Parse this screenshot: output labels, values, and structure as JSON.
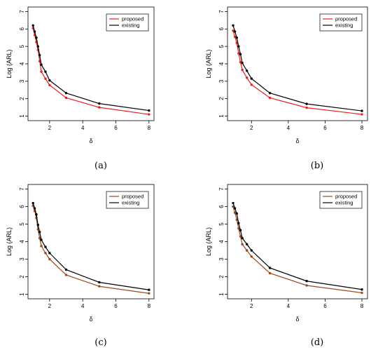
{
  "chart_data": [
    {
      "type": "line",
      "panel_label": "(a)",
      "xlabel": "δ",
      "ylabel": "Log (ARL)",
      "xlim": [
        1,
        8
      ],
      "ylim": [
        1,
        7
      ],
      "x_ticks": [
        2,
        4,
        6,
        8
      ],
      "y_ticks": [
        1,
        2,
        3,
        4,
        5,
        6,
        7
      ],
      "legend_position": "top-right",
      "x": [
        1.0,
        1.1,
        1.2,
        1.3,
        1.4,
        1.5,
        1.75,
        2.0,
        3.0,
        5.0,
        8.0
      ],
      "series": [
        {
          "name": "proposed",
          "color": "#e8201d",
          "values": [
            6.05,
            5.65,
            5.25,
            4.8,
            4.15,
            3.55,
            3.15,
            2.78,
            2.05,
            1.5,
            1.1
          ]
        },
        {
          "name": "existing",
          "color": "#000000",
          "values": [
            6.2,
            5.85,
            5.5,
            5.0,
            4.5,
            3.95,
            3.55,
            3.05,
            2.32,
            1.72,
            1.32
          ]
        }
      ]
    },
    {
      "type": "line",
      "panel_label": "(b)",
      "xlabel": "δ",
      "ylabel": "Log (ARL)",
      "xlim": [
        1,
        8
      ],
      "ylim": [
        1,
        7
      ],
      "x_ticks": [
        2,
        4,
        6,
        8
      ],
      "y_ticks": [
        1,
        2,
        3,
        4,
        5,
        6,
        7
      ],
      "legend_position": "top-right",
      "x": [
        1.0,
        1.1,
        1.2,
        1.3,
        1.4,
        1.5,
        1.75,
        2.0,
        3.0,
        5.0,
        8.0
      ],
      "series": [
        {
          "name": "proposed",
          "color": "#e8201d",
          "values": [
            5.9,
            5.55,
            5.2,
            4.6,
            4.1,
            3.65,
            3.2,
            2.8,
            2.05,
            1.48,
            1.1
          ]
        },
        {
          "name": "existing",
          "color": "#000000",
          "values": [
            6.2,
            5.85,
            5.5,
            5.0,
            4.55,
            4.05,
            3.6,
            3.15,
            2.32,
            1.7,
            1.3
          ]
        }
      ]
    },
    {
      "type": "line",
      "panel_label": "(c)",
      "xlabel": "δ",
      "ylabel": "Log (ARL)",
      "xlim": [
        1,
        8
      ],
      "ylim": [
        1,
        7
      ],
      "x_ticks": [
        2,
        4,
        6,
        8
      ],
      "y_ticks": [
        1,
        2,
        3,
        4,
        5,
        6,
        7
      ],
      "legend_position": "top-right",
      "x": [
        1.0,
        1.1,
        1.2,
        1.3,
        1.4,
        1.5,
        1.75,
        2.0,
        3.0,
        5.0,
        8.0
      ],
      "series": [
        {
          "name": "proposed",
          "color": "#9a4a1c",
          "values": [
            6.05,
            5.75,
            5.35,
            4.7,
            4.2,
            3.75,
            3.35,
            3.0,
            2.1,
            1.45,
            1.05
          ]
        },
        {
          "name": "existing",
          "color": "#000000",
          "values": [
            6.2,
            5.9,
            5.55,
            4.95,
            4.55,
            4.1,
            3.7,
            3.35,
            2.4,
            1.68,
            1.25
          ]
        }
      ]
    },
    {
      "type": "line",
      "panel_label": "(d)",
      "xlabel": "δ",
      "ylabel": "Log (ARL)",
      "xlim": [
        1,
        8
      ],
      "ylim": [
        1,
        7
      ],
      "x_ticks": [
        2,
        4,
        6,
        8
      ],
      "y_ticks": [
        1,
        2,
        3,
        4,
        5,
        6,
        7
      ],
      "legend_position": "top-right",
      "x": [
        1.0,
        1.1,
        1.2,
        1.3,
        1.4,
        1.5,
        1.75,
        2.0,
        3.0,
        5.0,
        8.0
      ],
      "series": [
        {
          "name": "proposed",
          "color": "#9a4a1c",
          "values": [
            6.0,
            5.65,
            5.25,
            4.75,
            4.3,
            3.85,
            3.5,
            3.15,
            2.2,
            1.5,
            1.08
          ]
        },
        {
          "name": "existing",
          "color": "#000000",
          "values": [
            6.2,
            5.9,
            5.6,
            5.05,
            4.65,
            4.2,
            3.85,
            3.5,
            2.5,
            1.75,
            1.27
          ]
        }
      ]
    }
  ]
}
